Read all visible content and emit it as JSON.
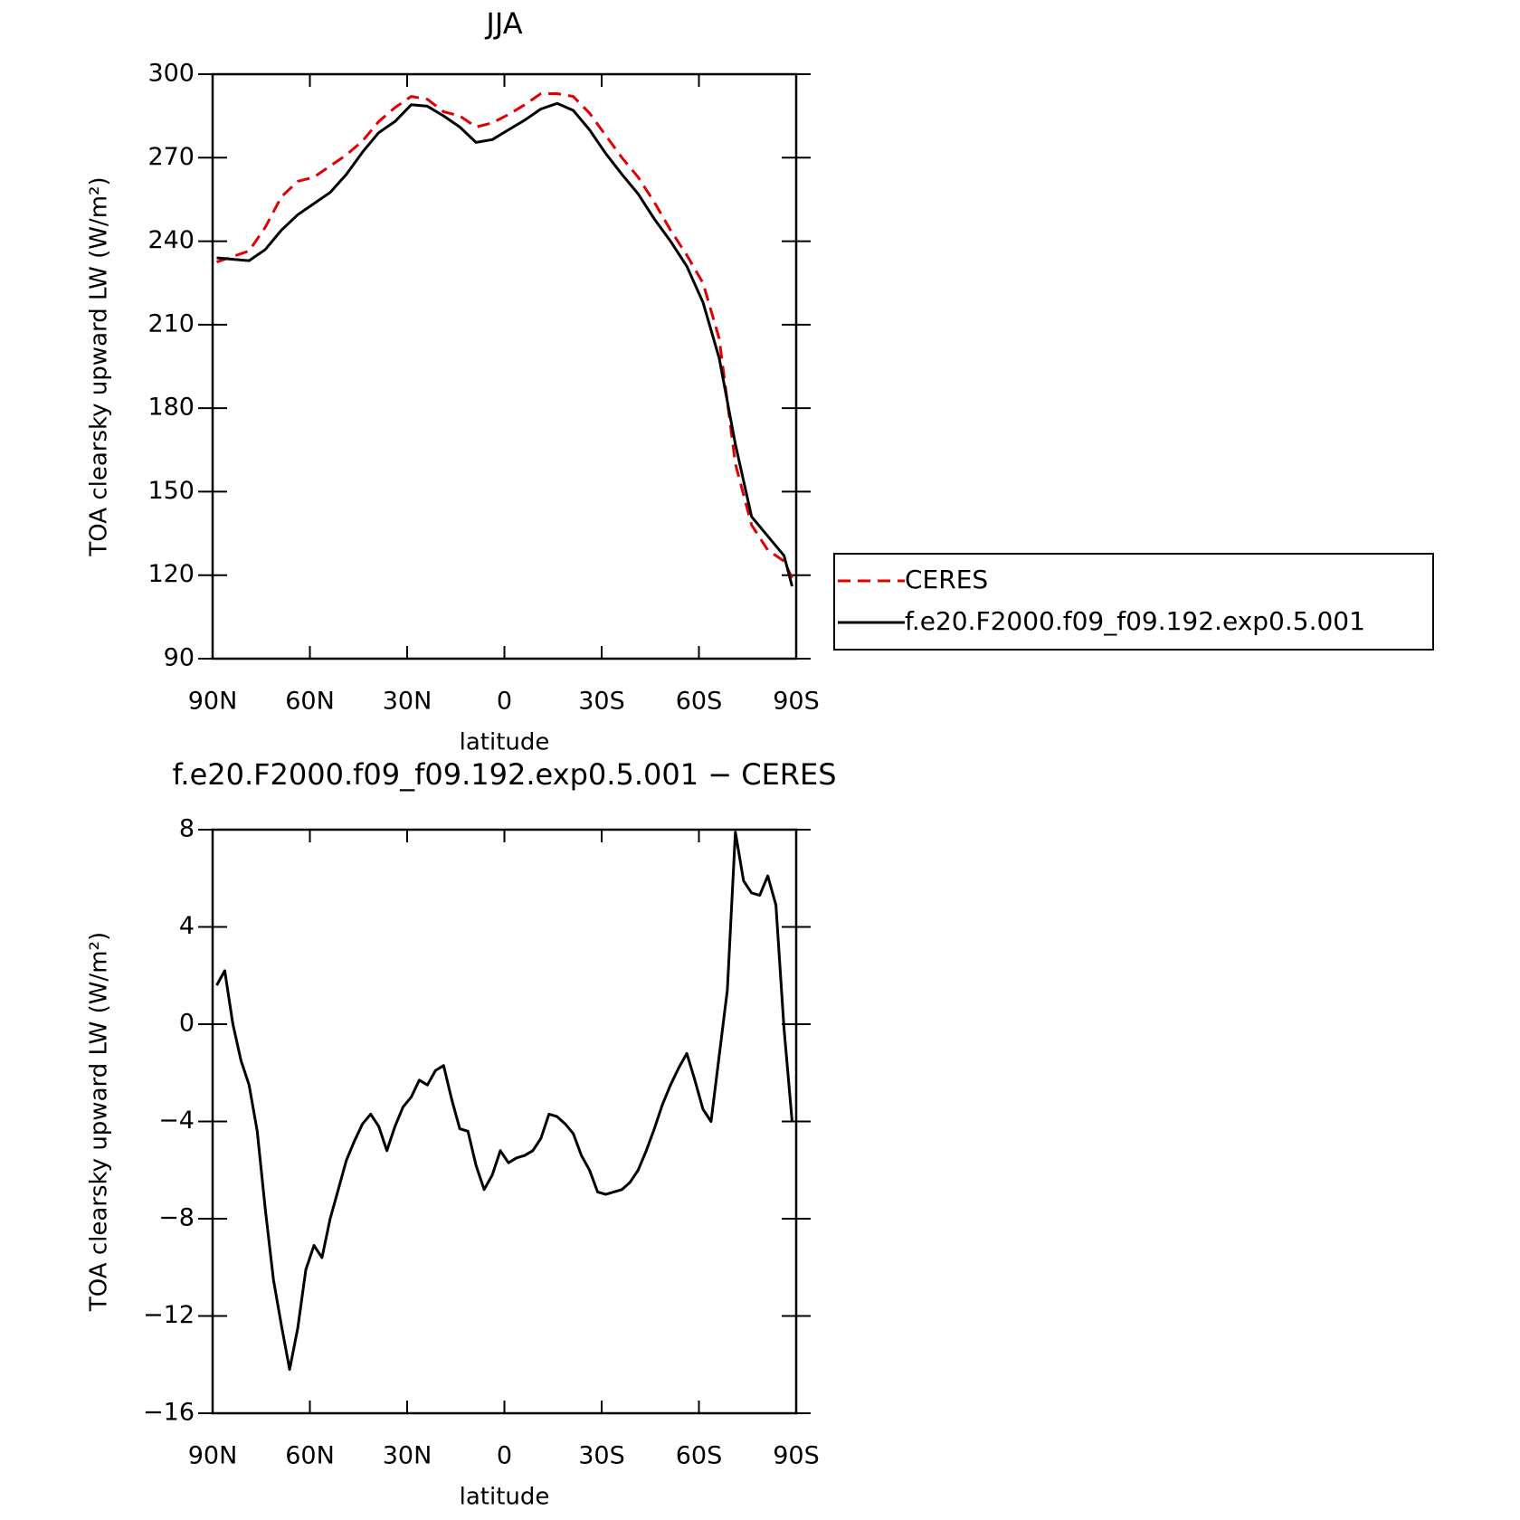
{
  "chart_data": [
    {
      "type": "line",
      "title": "JJA",
      "xlabel": "latitude",
      "ylabel": "TOA clearsky upward LW (W/m²)",
      "x": [
        88.75,
        83.75,
        78.75,
        73.75,
        68.75,
        63.75,
        58.75,
        53.75,
        48.75,
        43.75,
        38.75,
        33.75,
        28.75,
        23.75,
        18.75,
        13.75,
        8.75,
        3.75,
        -1.25,
        -6.25,
        -11.25,
        -16.25,
        -21.25,
        -26.25,
        -31.25,
        -36.25,
        -41.25,
        -46.25,
        -51.25,
        -56.25,
        -61.25,
        -66.25,
        -71.25,
        -76.25,
        -81.25,
        -86.25,
        -88.75
      ],
      "series": [
        {
          "name": "CERES",
          "color": "#e00000",
          "dashed": true,
          "values": [
            232.5,
            234.5,
            236.5,
            245,
            256,
            261.5,
            263,
            267,
            271,
            276,
            283,
            288,
            292,
            291,
            286.5,
            285,
            281,
            282.5,
            285.5,
            289,
            293,
            293,
            292,
            286,
            278,
            270,
            263,
            254,
            244,
            235,
            225,
            205,
            160,
            138,
            129,
            125,
            119
          ]
        },
        {
          "name": "f.e20.F2000.f09_f09.192.exp0.5.001",
          "color": "#000000",
          "dashed": false,
          "values": [
            234,
            233.5,
            233,
            237,
            244,
            249.5,
            253.5,
            257.5,
            264,
            272,
            279,
            283,
            289,
            288.5,
            285,
            281,
            275.5,
            276.5,
            280,
            283.5,
            287.5,
            289.5,
            287,
            280,
            271.5,
            264,
            257,
            248,
            240,
            231,
            218,
            198,
            167,
            141,
            134,
            127,
            116
          ]
        }
      ],
      "xlim": [
        90,
        -90
      ],
      "xticks": [
        {
          "value": 90,
          "label": "90N"
        },
        {
          "value": 60,
          "label": "60N"
        },
        {
          "value": 30,
          "label": "30N"
        },
        0,
        {
          "value": -30,
          "label": "30S"
        },
        {
          "value": -60,
          "label": "60S"
        },
        {
          "value": -90,
          "label": "90S"
        }
      ],
      "ylim": [
        90,
        300
      ],
      "yticks": [
        90,
        120,
        150,
        180,
        210,
        240,
        270,
        300
      ],
      "legend": "right"
    },
    {
      "type": "line",
      "title": "f.e20.F2000.f09_f09.192.exp0.5.001 − CERES",
      "xlabel": "latitude",
      "ylabel": "TOA clearsky upward LW (W/m²)",
      "x": [
        88.75,
        86.25,
        83.75,
        81.25,
        78.75,
        76.25,
        73.75,
        71.25,
        68.75,
        66.25,
        63.75,
        61.25,
        58.75,
        56.25,
        53.75,
        51.25,
        48.75,
        46.25,
        43.75,
        41.25,
        38.75,
        36.25,
        33.75,
        31.25,
        28.75,
        26.25,
        23.75,
        21.25,
        18.75,
        16.25,
        13.75,
        11.25,
        8.75,
        6.25,
        3.75,
        1.25,
        -1.25,
        -3.75,
        -6.25,
        -8.75,
        -11.25,
        -13.75,
        -16.25,
        -18.75,
        -21.25,
        -23.75,
        -26.25,
        -28.75,
        -31.25,
        -33.75,
        -36.25,
        -38.75,
        -41.25,
        -43.75,
        -46.25,
        -48.75,
        -51.25,
        -53.75,
        -56.25,
        -58.75,
        -61.25,
        -63.75,
        -66.25,
        -68.75,
        -71.25,
        -73.75,
        -76.25,
        -78.75,
        -81.25,
        -83.75,
        -86.25,
        -88.75
      ],
      "series": [
        {
          "color": "#000000",
          "dashed": false,
          "values": [
            1.6,
            2.2,
            0,
            -1.5,
            -2.5,
            -4.4,
            -7.6,
            -10.5,
            -12.4,
            -14.2,
            -12.5,
            -10.1,
            -9.1,
            -9.6,
            -8.0,
            -6.8,
            -5.6,
            -4.8,
            -4.1,
            -3.7,
            -4.2,
            -5.2,
            -4.2,
            -3.4,
            -3.0,
            -2.3,
            -2.5,
            -1.9,
            -1.7,
            -3.1,
            -4.3,
            -4.4,
            -5.8,
            -6.8,
            -6.2,
            -5.2,
            -5.7,
            -5.5,
            -5.4,
            -5.2,
            -4.7,
            -3.7,
            -3.8,
            -4.1,
            -4.5,
            -5.4,
            -6.0,
            -6.9,
            -7.0,
            -6.9,
            -6.8,
            -6.5,
            -6.0,
            -5.2,
            -4.3,
            -3.3,
            -2.5,
            -1.8,
            -1.2,
            -2.3,
            -3.5,
            -4.0,
            -1.3,
            1.4,
            7.9,
            5.9,
            5.4,
            5.3,
            6.1,
            4.9,
            -0.2,
            -4.0
          ]
        }
      ],
      "xlim": [
        90,
        -90
      ],
      "xticks": [
        {
          "value": 90,
          "label": "90N"
        },
        {
          "value": 60,
          "label": "60N"
        },
        {
          "value": 30,
          "label": "30N"
        },
        0,
        {
          "value": -30,
          "label": "30S"
        },
        {
          "value": -60,
          "label": "60S"
        },
        {
          "value": -90,
          "label": "90S"
        }
      ],
      "ylim": [
        -16,
        8
      ],
      "yticks": [
        {
          "value": -16,
          "label": "−16"
        },
        {
          "value": -12,
          "label": "−12"
        },
        {
          "value": -8,
          "label": "−8"
        },
        {
          "value": -4,
          "label": "−4"
        },
        0,
        4,
        8
      ]
    }
  ]
}
